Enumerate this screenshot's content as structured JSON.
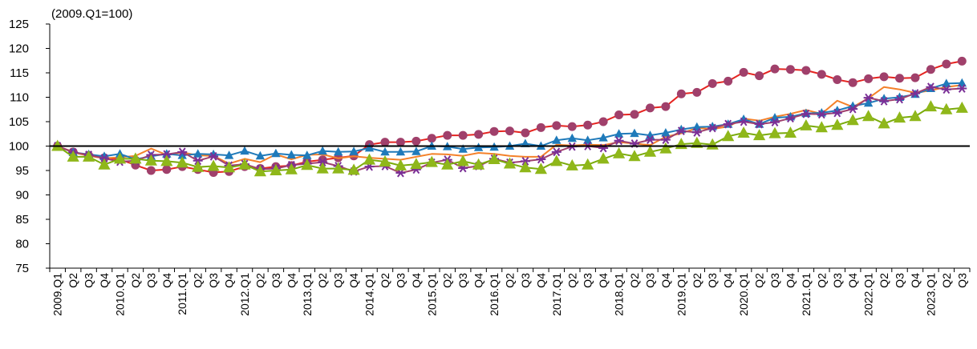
{
  "chart_data": {
    "type": "line",
    "unit_label": "(2009.Q1=100)",
    "ylim": [
      75,
      125
    ],
    "y_ticks": [
      75,
      80,
      85,
      90,
      95,
      100,
      105,
      110,
      115,
      120,
      125
    ],
    "reference_line": 100,
    "grid": false,
    "x": [
      "2009.Q1",
      "Q2",
      "Q3",
      "Q4",
      "2010.Q1",
      "Q2",
      "Q3",
      "Q4",
      "2011.Q1",
      "Q2",
      "Q3",
      "Q4",
      "2012.Q1",
      "Q2",
      "Q3",
      "Q4",
      "2013.Q1",
      "Q2",
      "Q3",
      "Q4",
      "2014.Q1",
      "Q2",
      "Q3",
      "Q4",
      "2015.Q1",
      "Q2",
      "Q3",
      "Q4",
      "2016.Q1",
      "Q2",
      "Q3",
      "Q4",
      "2017.Q1",
      "Q2",
      "Q3",
      "Q4",
      "2018.Q1",
      "Q2",
      "Q3",
      "Q4",
      "2019.Q1",
      "Q2",
      "Q3",
      "Q4",
      "2020.Q1",
      "Q2",
      "Q3",
      "Q4",
      "2021.Q1",
      "Q2",
      "Q3",
      "Q4",
      "2022.Q1",
      "Q2",
      "Q3",
      "Q4",
      "2023.Q1",
      "Q2",
      "Q3"
    ],
    "series": [
      {
        "color": "#e52420",
        "marker": "circle",
        "marker_color": "#a0406b",
        "values": [
          100,
          98.8,
          98.1,
          97.6,
          97.3,
          96.1,
          95.0,
          95.2,
          95.8,
          95.2,
          94.6,
          94.8,
          95.8,
          95.4,
          95.8,
          96.0,
          96.8,
          97.2,
          97.6,
          98.0,
          100.3,
          100.8,
          100.8,
          101.0,
          101.6,
          102.2,
          102.2,
          102.4,
          103.0,
          103.1,
          102.7,
          103.8,
          104.2,
          104.0,
          104.3,
          105.0,
          106.4,
          106.5,
          107.8,
          108.1,
          110.7,
          111.0,
          112.8,
          113.3,
          115.1,
          114.4,
          115.8,
          115.7,
          115.5,
          114.7,
          113.6,
          113.0,
          113.8,
          114.2,
          113.9,
          114.0,
          115.7,
          116.8,
          117.4
        ]
      },
      {
        "color": "#f4812a",
        "marker": "none",
        "values": [
          100,
          98.7,
          98.0,
          97.5,
          97.7,
          98.0,
          99.5,
          98.2,
          98.7,
          98.1,
          98.0,
          96.4,
          97.4,
          96.7,
          98.3,
          97.3,
          98.2,
          98.3,
          97.5,
          97.9,
          97.6,
          97.4,
          97.2,
          97.8,
          98.4,
          98.3,
          98.0,
          98.6,
          98.4,
          98.0,
          97.8,
          97.8,
          100.3,
          100.1,
          100.3,
          100.2,
          100.8,
          100.5,
          100.2,
          101.9,
          102.6,
          103.7,
          103.5,
          104.0,
          105.6,
          105.2,
          106.0,
          106.6,
          107.4,
          106.6,
          109.3,
          108.0,
          109.8,
          112.1,
          111.6,
          110.9,
          111.4,
          112.1,
          112.5
        ]
      },
      {
        "color": "#1f7aba",
        "marker": "triangle",
        "marker_color": "#1f7aba",
        "values": [
          100,
          98.7,
          98.3,
          97.9,
          98.4,
          97.3,
          97.9,
          98.4,
          98.1,
          98.4,
          98.3,
          98.1,
          99.0,
          98.0,
          98.5,
          98.2,
          98.1,
          99.0,
          98.8,
          98.9,
          99.6,
          98.8,
          98.8,
          98.9,
          100.0,
          99.9,
          99.4,
          99.7,
          99.8,
          100.0,
          100.5,
          100.0,
          101.2,
          101.6,
          101.2,
          101.7,
          102.5,
          102.6,
          102.2,
          102.7,
          103.4,
          103.9,
          104.0,
          104.5,
          105.5,
          104.5,
          105.8,
          106.0,
          106.7,
          106.8,
          107.3,
          108.2,
          108.8,
          109.7,
          110.0,
          110.6,
          111.8,
          112.8,
          112.9
        ]
      },
      {
        "color": "#a0416e",
        "marker": "star",
        "marker_color": "#7a2f96",
        "values": [
          100,
          98.7,
          98.2,
          97.5,
          96.8,
          97.0,
          98.2,
          98.3,
          98.8,
          97.0,
          97.9,
          96.0,
          96.3,
          95.3,
          95.4,
          96.1,
          96.4,
          96.7,
          95.9,
          94.8,
          95.8,
          95.9,
          94.5,
          95.2,
          96.6,
          97.2,
          95.5,
          95.9,
          97.4,
          96.6,
          96.9,
          97.3,
          98.8,
          99.9,
          100.0,
          99.6,
          101.1,
          100.5,
          101.3,
          101.3,
          103.1,
          102.8,
          103.7,
          104.5,
          105.0,
          104.5,
          104.9,
          105.7,
          106.6,
          106.5,
          106.8,
          107.6,
          109.9,
          109.2,
          109.6,
          110.8,
          112.1,
          111.6,
          111.8
        ]
      },
      {
        "color": "#7aab0b",
        "marker": "triangle",
        "marker_color": "#8fb71a",
        "values": [
          100,
          97.8,
          97.8,
          96.2,
          97.4,
          97.4,
          97.0,
          96.9,
          96.6,
          95.7,
          95.9,
          95.6,
          96.2,
          94.8,
          95.0,
          95.2,
          96.1,
          95.4,
          95.4,
          95.1,
          97.2,
          96.8,
          96.0,
          96.3,
          96.7,
          96.2,
          96.9,
          96.2,
          97.3,
          96.4,
          95.6,
          95.3,
          96.9,
          96.0,
          96.2,
          97.4,
          98.5,
          97.9,
          98.8,
          99.5,
          100.4,
          100.6,
          100.3,
          102.0,
          102.7,
          102.2,
          102.6,
          102.7,
          104.2,
          103.8,
          104.3,
          105.3,
          106.1,
          104.6,
          105.8,
          106.1,
          108.1,
          107.5,
          107.8
        ]
      }
    ]
  }
}
